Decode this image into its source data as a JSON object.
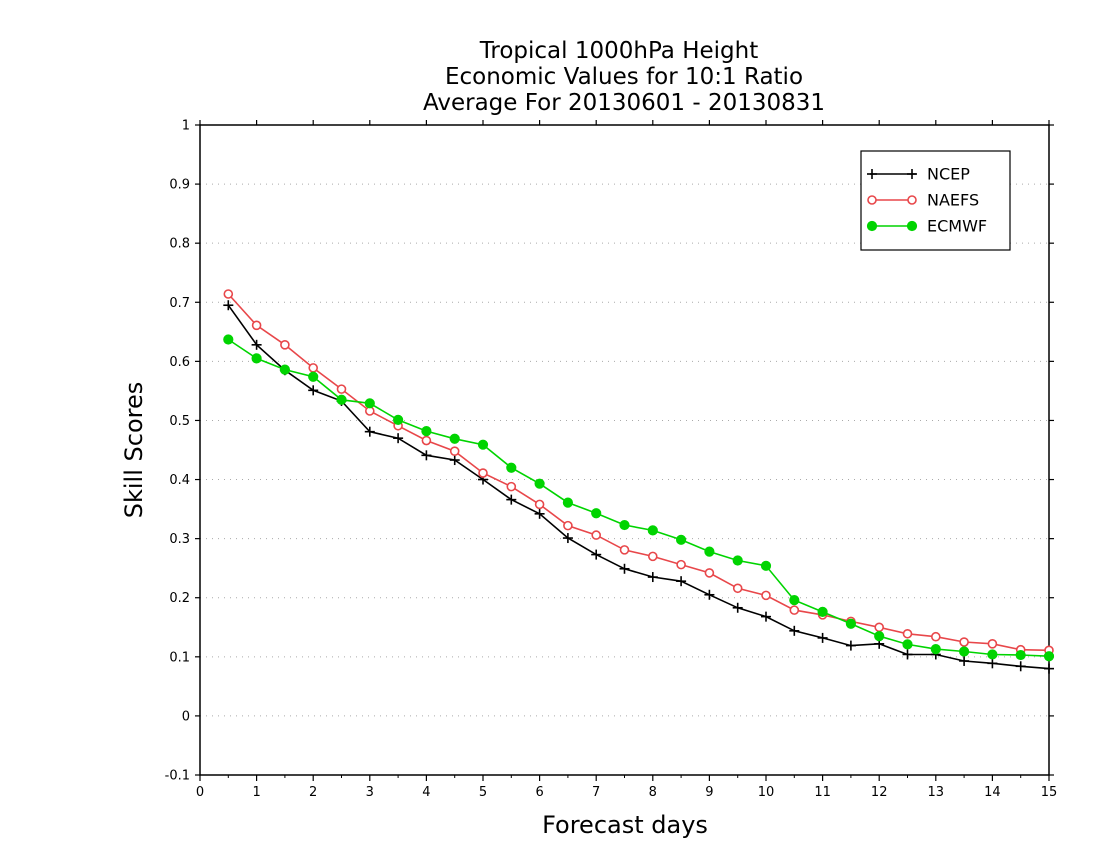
{
  "chart_data": {
    "type": "line",
    "title": [
      "Tropical 1000hPa Height",
      "Economic Values for 10:1 Ratio",
      "Average For 20130601 - 20130831"
    ],
    "xlabel": "Forecast days",
    "ylabel": "Skill Scores",
    "xlim": [
      0,
      15
    ],
    "ylim": [
      -0.1,
      1
    ],
    "xticks": [
      "0",
      "1",
      "2",
      "3",
      "4",
      "5",
      "6",
      "7",
      "8",
      "9",
      "10",
      "11",
      "12",
      "13",
      "14",
      "15"
    ],
    "yticks": [
      "-0.1",
      "0",
      "0.1",
      "0.2",
      "0.3",
      "0.4",
      "0.5",
      "0.6",
      "0.7",
      "0.8",
      "0.9",
      "1"
    ],
    "grid": true,
    "legend_position": "top-right",
    "x": [
      0.5,
      1,
      1.5,
      2,
      2.5,
      3,
      3.5,
      4,
      4.5,
      5,
      5.5,
      6,
      6.5,
      7,
      7.5,
      8,
      8.5,
      9,
      9.5,
      10,
      10.5,
      11,
      11.5,
      12,
      12.5,
      13,
      13.5,
      14,
      14.5,
      15
    ],
    "series": [
      {
        "name": "NCEP",
        "color": "#000000",
        "marker": "plus",
        "values": [
          0.695,
          0.628,
          0.585,
          0.551,
          0.533,
          0.481,
          0.47,
          0.441,
          0.433,
          0.4,
          0.366,
          0.342,
          0.301,
          0.273,
          0.249,
          0.235,
          0.228,
          0.205,
          0.183,
          0.168,
          0.144,
          0.132,
          0.119,
          0.122,
          0.104,
          0.104,
          0.093,
          0.089,
          0.084,
          0.08
        ]
      },
      {
        "name": "NAEFS",
        "color": "#e8474a",
        "marker": "open-circle",
        "values": [
          0.714,
          0.661,
          0.628,
          0.589,
          0.553,
          0.516,
          0.491,
          0.466,
          0.448,
          0.411,
          0.388,
          0.358,
          0.322,
          0.306,
          0.281,
          0.27,
          0.256,
          0.242,
          0.216,
          0.204,
          0.179,
          0.171,
          0.16,
          0.15,
          0.139,
          0.134,
          0.125,
          0.122,
          0.112,
          0.111
        ]
      },
      {
        "name": "ECMWF",
        "color": "#00d400",
        "marker": "filled-circle",
        "values": [
          0.637,
          0.605,
          0.586,
          0.574,
          0.535,
          0.529,
          0.501,
          0.482,
          0.469,
          0.459,
          0.42,
          0.393,
          0.361,
          0.343,
          0.323,
          0.314,
          0.298,
          0.278,
          0.263,
          0.254,
          0.196,
          0.176,
          0.156,
          0.135,
          0.121,
          0.113,
          0.109,
          0.104,
          0.103,
          0.101
        ]
      }
    ]
  }
}
